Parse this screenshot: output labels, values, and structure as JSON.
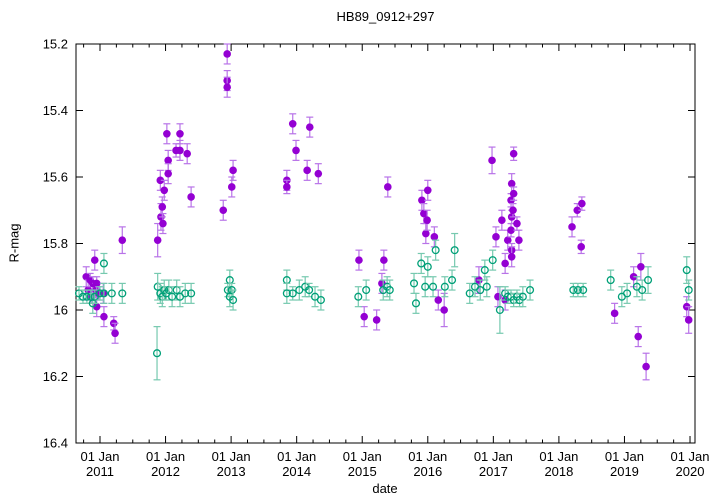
{
  "chart_data": {
    "type": "scatter",
    "title": "HB89_0912+297",
    "xlabel": "date",
    "ylabel": "R-mag",
    "grid": false,
    "legend": "none",
    "x_axis": {
      "min": 2010.634,
      "max": 2020.076,
      "tick_years": [
        2011,
        2012,
        2013,
        2014,
        2015,
        2016,
        2017,
        2018,
        2019,
        2020
      ],
      "tick_labels": [
        "01 Jan 2011",
        "01 Jan 2012",
        "01 Jan 2013",
        "01 Jan 2014",
        "01 Jan 2015",
        "01 Jan 2016",
        "01 Jan 2017",
        "01 Jan 2018",
        "01 Jan 2019",
        "01 Jan 2020"
      ],
      "minor_ticks_per_year": 4
    },
    "y_axis": {
      "min": 15.2,
      "max": 16.4,
      "inverted_magnitude_scale": true,
      "tick_values": [
        15.2,
        15.4,
        15.6,
        15.8,
        16.0,
        16.2,
        16.4
      ],
      "tick_labels": [
        "15.2",
        "15.4",
        "15.6",
        "15.8",
        "16",
        "16.2",
        "16.4"
      ]
    },
    "series": [
      {
        "name": "R-mag filled purple points with error bars",
        "marker": "filled-circle",
        "color": "#9400d3",
        "errorbar_color": "#b873e8",
        "points_format": [
          "decimal_year",
          "mag",
          "err"
        ],
        "points": [
          [
            2010.79,
            15.9,
            0.03
          ],
          [
            2010.82,
            15.94,
            0.03
          ],
          [
            2010.85,
            15.91,
            0.02
          ],
          [
            2010.88,
            15.96,
            0.02
          ],
          [
            2010.89,
            15.92,
            0.02
          ],
          [
            2010.92,
            15.85,
            0.03
          ],
          [
            2010.94,
            15.94,
            0.02
          ],
          [
            2010.95,
            15.92,
            0.02
          ],
          [
            2010.95,
            15.99,
            0.03
          ],
          [
            2010.98,
            15.95,
            0.02
          ],
          [
            2011.05,
            15.95,
            0.03
          ],
          [
            2011.06,
            16.02,
            0.03
          ],
          [
            2011.21,
            16.04,
            0.02
          ],
          [
            2011.23,
            16.07,
            0.03
          ],
          [
            2011.34,
            15.79,
            0.04
          ],
          [
            2011.88,
            15.79,
            0.05
          ],
          [
            2011.92,
            15.61,
            0.03
          ],
          [
            2011.93,
            15.72,
            0.04
          ],
          [
            2011.95,
            15.69,
            0.03
          ],
          [
            2011.96,
            15.74,
            0.03
          ],
          [
            2011.98,
            15.64,
            0.03
          ],
          [
            2012.02,
            15.47,
            0.03
          ],
          [
            2012.04,
            15.55,
            0.03
          ],
          [
            2012.04,
            15.59,
            0.03
          ],
          [
            2012.16,
            15.52,
            0.02
          ],
          [
            2012.22,
            15.47,
            0.03
          ],
          [
            2012.22,
            15.52,
            0.03
          ],
          [
            2012.33,
            15.53,
            0.03
          ],
          [
            2012.39,
            15.66,
            0.03
          ],
          [
            2012.88,
            15.7,
            0.03
          ],
          [
            2012.94,
            15.23,
            0.03
          ],
          [
            2012.94,
            15.31,
            0.03
          ],
          [
            2012.94,
            15.33,
            0.03
          ],
          [
            2013.01,
            15.63,
            0.03
          ],
          [
            2013.03,
            15.58,
            0.03
          ],
          [
            2013.85,
            15.61,
            0.03
          ],
          [
            2013.85,
            15.63,
            0.02
          ],
          [
            2013.94,
            15.44,
            0.03
          ],
          [
            2013.99,
            15.52,
            0.03
          ],
          [
            2014.16,
            15.58,
            0.03
          ],
          [
            2014.2,
            15.45,
            0.03
          ],
          [
            2014.33,
            15.59,
            0.03
          ],
          [
            2014.95,
            15.85,
            0.03
          ],
          [
            2015.03,
            16.02,
            0.03
          ],
          [
            2015.22,
            16.03,
            0.03
          ],
          [
            2015.3,
            15.92,
            0.03
          ],
          [
            2015.33,
            15.85,
            0.03
          ],
          [
            2015.39,
            15.63,
            0.03
          ],
          [
            2015.91,
            15.67,
            0.03
          ],
          [
            2015.94,
            15.71,
            0.03
          ],
          [
            2015.97,
            15.77,
            0.03
          ],
          [
            2015.99,
            15.73,
            0.03
          ],
          [
            2016.0,
            15.64,
            0.03
          ],
          [
            2016.1,
            15.78,
            0.03
          ],
          [
            2016.16,
            15.97,
            0.03
          ],
          [
            2016.25,
            16.0,
            0.05
          ],
          [
            2016.78,
            15.91,
            0.04
          ],
          [
            2016.98,
            15.55,
            0.04
          ],
          [
            2017.04,
            15.78,
            0.03
          ],
          [
            2017.07,
            15.96,
            0.03
          ],
          [
            2017.13,
            15.73,
            0.03
          ],
          [
            2017.18,
            15.86,
            0.03
          ],
          [
            2017.18,
            15.97,
            0.03
          ],
          [
            2017.22,
            15.79,
            0.03
          ],
          [
            2017.27,
            15.67,
            0.02
          ],
          [
            2017.27,
            15.76,
            0.02
          ],
          [
            2017.28,
            15.62,
            0.03
          ],
          [
            2017.28,
            15.72,
            0.02
          ],
          [
            2017.28,
            15.82,
            0.02
          ],
          [
            2017.28,
            15.84,
            0.03
          ],
          [
            2017.3,
            15.7,
            0.02
          ],
          [
            2017.31,
            15.53,
            0.02
          ],
          [
            2017.31,
            15.65,
            0.02
          ],
          [
            2017.36,
            15.74,
            0.02
          ],
          [
            2017.39,
            15.79,
            0.03
          ],
          [
            2018.2,
            15.75,
            0.03
          ],
          [
            2018.28,
            15.7,
            0.02
          ],
          [
            2018.34,
            15.81,
            0.02
          ],
          [
            2018.35,
            15.68,
            0.02
          ],
          [
            2018.85,
            16.01,
            0.03
          ],
          [
            2019.14,
            15.9,
            0.03
          ],
          [
            2019.21,
            16.08,
            0.03
          ],
          [
            2019.25,
            15.87,
            0.04
          ],
          [
            2019.33,
            16.17,
            0.04
          ],
          [
            2019.95,
            15.99,
            0.03
          ],
          [
            2019.98,
            16.03,
            0.04
          ]
        ]
      },
      {
        "name": "R-mag open green points with error bars",
        "marker": "open-circle",
        "color": "#00a078",
        "errorbar_color": "#76c9af",
        "points_format": [
          "decimal_year",
          "mag",
          "err"
        ],
        "points": [
          [
            2010.68,
            15.95,
            0.02
          ],
          [
            2010.74,
            15.96,
            0.02
          ],
          [
            2010.8,
            15.96,
            0.02
          ],
          [
            2010.86,
            15.96,
            0.02
          ],
          [
            2010.89,
            15.98,
            0.03
          ],
          [
            2010.92,
            15.96,
            0.02
          ],
          [
            2011.0,
            15.95,
            0.02
          ],
          [
            2011.06,
            15.86,
            0.03
          ],
          [
            2011.06,
            15.95,
            0.03
          ],
          [
            2011.18,
            15.95,
            0.03
          ],
          [
            2011.34,
            15.95,
            0.03
          ],
          [
            2011.87,
            16.13,
            0.08
          ],
          [
            2011.88,
            15.93,
            0.04
          ],
          [
            2011.92,
            15.95,
            0.03
          ],
          [
            2011.95,
            15.96,
            0.03
          ],
          [
            2011.98,
            15.94,
            0.03
          ],
          [
            2012.01,
            15.95,
            0.02
          ],
          [
            2012.05,
            15.94,
            0.03
          ],
          [
            2012.1,
            15.96,
            0.03
          ],
          [
            2012.17,
            15.94,
            0.03
          ],
          [
            2012.22,
            15.96,
            0.03
          ],
          [
            2012.3,
            15.95,
            0.03
          ],
          [
            2012.39,
            15.95,
            0.03
          ],
          [
            2012.95,
            15.94,
            0.02
          ],
          [
            2012.98,
            15.91,
            0.03
          ],
          [
            2012.98,
            15.96,
            0.03
          ],
          [
            2013.01,
            15.94,
            0.02
          ],
          [
            2013.03,
            15.97,
            0.03
          ],
          [
            2013.85,
            15.91,
            0.03
          ],
          [
            2013.85,
            15.95,
            0.03
          ],
          [
            2013.94,
            15.95,
            0.02
          ],
          [
            2014.04,
            15.94,
            0.03
          ],
          [
            2014.13,
            15.93,
            0.03
          ],
          [
            2014.19,
            15.94,
            0.02
          ],
          [
            2014.28,
            15.96,
            0.03
          ],
          [
            2014.37,
            15.97,
            0.03
          ],
          [
            2014.94,
            15.96,
            0.03
          ],
          [
            2015.06,
            15.94,
            0.03
          ],
          [
            2015.32,
            15.94,
            0.03
          ],
          [
            2015.38,
            15.93,
            0.03
          ],
          [
            2015.42,
            15.94,
            0.03
          ],
          [
            2015.79,
            15.92,
            0.03
          ],
          [
            2015.82,
            15.98,
            0.03
          ],
          [
            2015.9,
            15.86,
            0.03
          ],
          [
            2015.96,
            15.93,
            0.03
          ],
          [
            2016.0,
            15.87,
            0.03
          ],
          [
            2016.08,
            15.93,
            0.03
          ],
          [
            2016.12,
            15.82,
            0.03
          ],
          [
            2016.26,
            15.93,
            0.03
          ],
          [
            2016.37,
            15.91,
            0.03
          ],
          [
            2016.41,
            15.82,
            0.05
          ],
          [
            2016.64,
            15.95,
            0.03
          ],
          [
            2016.72,
            15.93,
            0.03
          ],
          [
            2016.8,
            15.94,
            0.03
          ],
          [
            2016.87,
            15.88,
            0.03
          ],
          [
            2016.9,
            15.93,
            0.03
          ],
          [
            2016.99,
            15.85,
            0.03
          ],
          [
            2017.1,
            16.0,
            0.07
          ],
          [
            2017.18,
            15.95,
            0.02
          ],
          [
            2017.22,
            15.96,
            0.02
          ],
          [
            2017.27,
            15.96,
            0.02
          ],
          [
            2017.31,
            15.97,
            0.02
          ],
          [
            2017.36,
            15.96,
            0.02
          ],
          [
            2017.4,
            15.97,
            0.02
          ],
          [
            2017.45,
            15.96,
            0.03
          ],
          [
            2017.56,
            15.94,
            0.03
          ],
          [
            2018.22,
            15.94,
            0.02
          ],
          [
            2018.29,
            15.94,
            0.02
          ],
          [
            2018.37,
            15.94,
            0.02
          ],
          [
            2018.79,
            15.91,
            0.03
          ],
          [
            2018.96,
            15.96,
            0.03
          ],
          [
            2019.04,
            15.95,
            0.03
          ],
          [
            2019.19,
            15.93,
            0.03
          ],
          [
            2019.27,
            15.94,
            0.03
          ],
          [
            2019.36,
            15.91,
            0.04
          ],
          [
            2019.95,
            15.88,
            0.04
          ],
          [
            2019.98,
            15.94,
            0.03
          ]
        ]
      }
    ]
  }
}
